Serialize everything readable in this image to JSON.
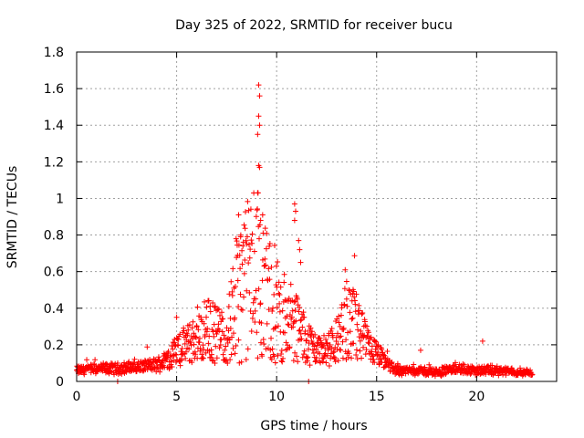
{
  "chart_data": {
    "type": "scatter",
    "title": "Day 325 of 2022, SRMTID for receiver bucu",
    "xlabel": "GPS time / hours",
    "ylabel": "SRMTID / TECUs",
    "xlim": [
      0,
      24
    ],
    "ylim": [
      0,
      1.8
    ],
    "x_ticks": [
      0,
      5,
      10,
      15,
      20
    ],
    "x_tick_labels": [
      "0",
      "5",
      "10",
      "15",
      "20"
    ],
    "y_ticks": [
      0,
      0.2,
      0.4,
      0.6,
      0.8,
      1.0,
      1.2,
      1.4,
      1.6,
      1.8
    ],
    "y_tick_labels": [
      "0",
      "0.2",
      "0.4",
      "0.6",
      "0.8",
      "1",
      "1.2",
      "1.4",
      "1.6",
      "1.8"
    ],
    "grid": true,
    "marker": "+",
    "color": "#ff0000",
    "envelope": [
      {
        "x": 0.0,
        "y": 0.06
      },
      {
        "x": 1.0,
        "y": 0.07
      },
      {
        "x": 2.0,
        "y": 0.07
      },
      {
        "x": 3.0,
        "y": 0.08
      },
      {
        "x": 4.0,
        "y": 0.09
      },
      {
        "x": 4.5,
        "y": 0.12
      },
      {
        "x": 5.0,
        "y": 0.17
      },
      {
        "x": 5.5,
        "y": 0.2
      },
      {
        "x": 6.0,
        "y": 0.23
      },
      {
        "x": 6.5,
        "y": 0.28
      },
      {
        "x": 7.0,
        "y": 0.26
      },
      {
        "x": 7.5,
        "y": 0.24
      },
      {
        "x": 8.0,
        "y": 0.45
      },
      {
        "x": 8.5,
        "y": 0.55
      },
      {
        "x": 9.0,
        "y": 0.6
      },
      {
        "x": 9.5,
        "y": 0.45
      },
      {
        "x": 10.0,
        "y": 0.38
      },
      {
        "x": 10.5,
        "y": 0.33
      },
      {
        "x": 11.0,
        "y": 0.3
      },
      {
        "x": 11.5,
        "y": 0.22
      },
      {
        "x": 12.0,
        "y": 0.18
      },
      {
        "x": 12.5,
        "y": 0.16
      },
      {
        "x": 13.0,
        "y": 0.22
      },
      {
        "x": 13.5,
        "y": 0.33
      },
      {
        "x": 14.0,
        "y": 0.3
      },
      {
        "x": 14.5,
        "y": 0.2
      },
      {
        "x": 15.0,
        "y": 0.15
      },
      {
        "x": 15.5,
        "y": 0.1
      },
      {
        "x": 16.0,
        "y": 0.06
      },
      {
        "x": 17.0,
        "y": 0.06
      },
      {
        "x": 18.0,
        "y": 0.05
      },
      {
        "x": 19.0,
        "y": 0.07
      },
      {
        "x": 20.0,
        "y": 0.06
      },
      {
        "x": 21.0,
        "y": 0.06
      },
      {
        "x": 22.0,
        "y": 0.05
      },
      {
        "x": 22.8,
        "y": 0.05
      }
    ],
    "notable_points": [
      {
        "x": 9.1,
        "y": 1.62
      },
      {
        "x": 9.15,
        "y": 1.56
      },
      {
        "x": 9.1,
        "y": 1.45
      },
      {
        "x": 9.15,
        "y": 1.4
      },
      {
        "x": 9.05,
        "y": 1.35
      },
      {
        "x": 9.1,
        "y": 1.18
      },
      {
        "x": 9.15,
        "y": 1.17
      },
      {
        "x": 9.05,
        "y": 1.03
      },
      {
        "x": 9.2,
        "y": 0.88
      },
      {
        "x": 9.3,
        "y": 0.91
      },
      {
        "x": 8.1,
        "y": 0.91
      },
      {
        "x": 8.2,
        "y": 0.79
      },
      {
        "x": 10.9,
        "y": 0.97
      },
      {
        "x": 10.95,
        "y": 0.93
      },
      {
        "x": 10.9,
        "y": 0.88
      },
      {
        "x": 11.1,
        "y": 0.77
      },
      {
        "x": 11.15,
        "y": 0.72
      },
      {
        "x": 11.2,
        "y": 0.65
      },
      {
        "x": 13.8,
        "y": 0.48
      },
      {
        "x": 13.5,
        "y": 0.45
      },
      {
        "x": 6.6,
        "y": 0.44
      },
      {
        "x": 5.0,
        "y": 0.35
      },
      {
        "x": 20.3,
        "y": 0.22
      },
      {
        "x": 17.2,
        "y": 0.17
      },
      {
        "x": 2.05,
        "y": 0.0
      },
      {
        "x": 11.6,
        "y": 0.0
      }
    ]
  }
}
